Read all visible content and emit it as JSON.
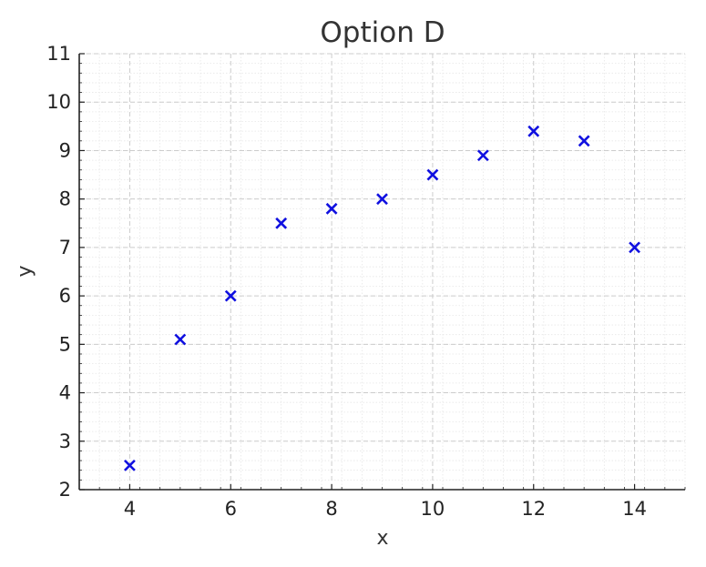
{
  "chart_data": {
    "type": "scatter",
    "title": "Option D",
    "xlabel": "x",
    "ylabel": "y",
    "xlim": [
      3,
      15
    ],
    "ylim": [
      2,
      11
    ],
    "xticks": [
      4,
      6,
      8,
      10,
      12,
      14
    ],
    "yticks": [
      2,
      3,
      4,
      5,
      6,
      7,
      8,
      9,
      10,
      11
    ],
    "grid": true,
    "marker": "x",
    "colors": {
      "marker": "#1010e0",
      "major_grid": "#cccccc",
      "minor_grid": "#e6e6e6",
      "axis": "#222222"
    },
    "series": [
      {
        "x": [
          4,
          5,
          6,
          7,
          8,
          9,
          10,
          11,
          12,
          13,
          14
        ],
        "y": [
          2.5,
          5.1,
          6.0,
          7.5,
          7.8,
          8.0,
          8.5,
          8.9,
          9.4,
          9.2,
          7.0
        ]
      }
    ]
  }
}
